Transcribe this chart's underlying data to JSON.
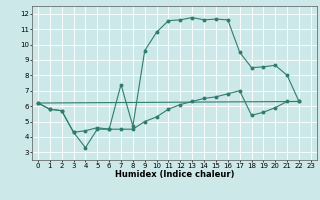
{
  "xlabel": "Humidex (Indice chaleur)",
  "background_color": "#cde8e8",
  "grid_color": "#ffffff",
  "line_color": "#2e7d6e",
  "xlim": [
    -0.5,
    23.5
  ],
  "ylim": [
    2.5,
    12.5
  ],
  "xticks": [
    0,
    1,
    2,
    3,
    4,
    5,
    6,
    7,
    8,
    9,
    10,
    11,
    12,
    13,
    14,
    15,
    16,
    17,
    18,
    19,
    20,
    21,
    22,
    23
  ],
  "yticks": [
    3,
    4,
    5,
    6,
    7,
    8,
    9,
    10,
    11,
    12
  ],
  "line1_x": [
    0,
    1,
    2,
    3,
    4,
    5,
    6,
    7,
    8,
    9,
    10,
    11,
    12,
    13,
    14,
    15,
    16,
    17,
    18,
    19,
    20,
    21,
    22
  ],
  "line1_y": [
    6.2,
    5.8,
    5.7,
    4.3,
    3.3,
    4.5,
    4.5,
    7.4,
    4.7,
    9.6,
    10.8,
    11.55,
    11.6,
    11.75,
    11.6,
    11.65,
    11.6,
    9.5,
    8.5,
    8.55,
    8.65,
    8.0,
    6.3
  ],
  "line2_x": [
    0,
    1,
    2,
    3,
    4,
    5,
    6,
    7,
    8,
    9,
    10,
    11,
    12,
    13,
    14,
    15,
    16,
    17,
    18,
    19,
    20,
    21,
    22
  ],
  "line2_y": [
    6.2,
    5.8,
    5.7,
    4.3,
    4.4,
    4.6,
    4.5,
    4.5,
    4.5,
    5.0,
    5.3,
    5.8,
    6.1,
    6.3,
    6.5,
    6.6,
    6.8,
    7.0,
    5.4,
    5.6,
    5.9,
    6.3,
    6.3
  ],
  "line3_x": [
    0,
    22
  ],
  "line3_y": [
    6.2,
    6.3
  ],
  "tick_fontsize": 5.0,
  "xlabel_fontsize": 6.0
}
